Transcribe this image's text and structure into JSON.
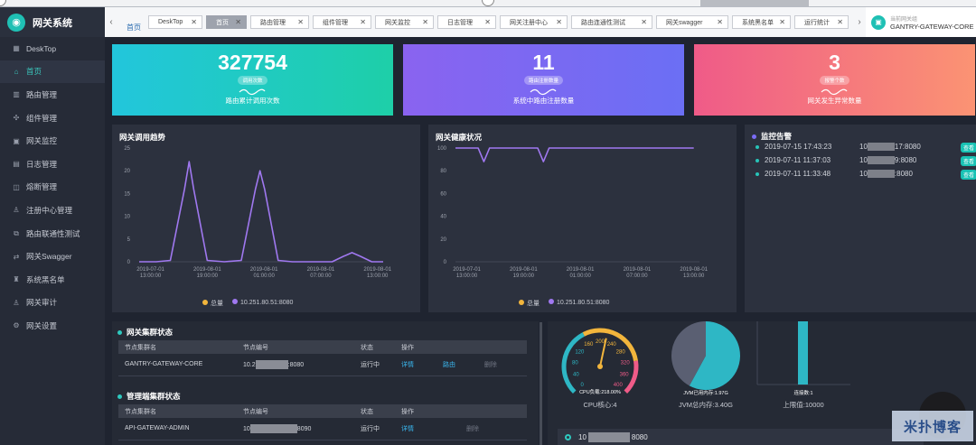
{
  "app": {
    "title": "网关系统"
  },
  "tabs": {
    "breadcrumb": "首页",
    "items": [
      {
        "label": "DeskTop",
        "active": false
      },
      {
        "label": "首页",
        "active": true
      },
      {
        "label": "路由管理",
        "active": false
      },
      {
        "label": "组件管理",
        "active": false
      },
      {
        "label": "网关监控",
        "active": false
      },
      {
        "label": "日志管理",
        "active": false
      },
      {
        "label": "网关注册中心",
        "active": false
      },
      {
        "label": "路由连通性测试",
        "active": false
      },
      {
        "label": "网关swagger",
        "active": false
      },
      {
        "label": "系统黑名单",
        "active": false
      },
      {
        "label": "运行统计",
        "active": false
      }
    ],
    "current_gateway_label": "当前网关组",
    "current_gateway": "GANTRY-GATEWAY-CORE"
  },
  "sidebar": {
    "items": [
      {
        "label": "DeskTop",
        "icon": "grid-icon",
        "glyph": "▦"
      },
      {
        "label": "首页",
        "icon": "home-icon",
        "glyph": "⌂",
        "active": true
      },
      {
        "label": "路由管理",
        "icon": "chart-icon",
        "glyph": "▥"
      },
      {
        "label": "组件管理",
        "icon": "puzzle-icon",
        "glyph": "✣"
      },
      {
        "label": "网关监控",
        "icon": "monitor-icon",
        "glyph": "▣"
      },
      {
        "label": "日志管理",
        "icon": "log-icon",
        "glyph": "▤"
      },
      {
        "label": "熔断管理",
        "icon": "breaker-icon",
        "glyph": "◫"
      },
      {
        "label": "注册中心管理",
        "icon": "registry-icon",
        "glyph": "♙"
      },
      {
        "label": "路由联通性测试",
        "icon": "route-test-icon",
        "glyph": "⧉"
      },
      {
        "label": "网关Swagger",
        "icon": "swagger-icon",
        "glyph": "⇄"
      },
      {
        "label": "系统黑名单",
        "icon": "blacklist-icon",
        "glyph": "♜"
      },
      {
        "label": "网关审计",
        "icon": "audit-icon",
        "glyph": "♙"
      },
      {
        "label": "网关设置",
        "icon": "settings-icon",
        "glyph": "⚙"
      }
    ]
  },
  "stats": [
    {
      "value": "327754",
      "pill": "调用次数",
      "desc": "路由累计调用次数",
      "color": "#22c6dc"
    },
    {
      "value": "11",
      "pill": "路由注册数量",
      "desc": "系统中路由注册数量",
      "color": "#8a63f0"
    },
    {
      "value": "3",
      "pill": "报警个数",
      "desc": "网关发生异常数量",
      "color": "#ef5b88"
    }
  ],
  "trend": {
    "title": "网关调用趋势",
    "legend": [
      "总量",
      "10.251.80.51:8080"
    ],
    "legend_colors": [
      "#f2b53c",
      "#a078f0"
    ]
  },
  "health": {
    "title": "网关健康状况",
    "legend": [
      "总量",
      "10.251.80.51:8080"
    ],
    "legend_colors": [
      "#f2b53c",
      "#a078f0"
    ]
  },
  "chart_data": [
    {
      "type": "line",
      "title": "网关调用趋势",
      "x": [
        "2019-07-01 13:00:00",
        "2019-08-01 19:00:00",
        "2019-08-01 01:00:00",
        "2019-08-01 07:00:00",
        "2019-08-01 13:00:00"
      ],
      "y_ticks": [
        0,
        5,
        10,
        15,
        20,
        25
      ],
      "ylim": [
        0,
        25
      ],
      "series": [
        {
          "name": "10.251.80.51:8080",
          "color": "#a078f0",
          "points": [
            [
              0,
              0
            ],
            [
              0.3,
              0
            ],
            [
              0.55,
              0.3
            ],
            [
              0.8,
              16
            ],
            [
              0.88,
              22
            ],
            [
              0.96,
              16
            ],
            [
              1.2,
              0.3
            ],
            [
              1.5,
              0
            ],
            [
              1.8,
              0.3
            ],
            [
              2.05,
              16
            ],
            [
              2.13,
              20
            ],
            [
              2.21,
              16
            ],
            [
              2.45,
              0.3
            ],
            [
              2.7,
              0
            ],
            [
              3.4,
              0
            ],
            [
              3.6,
              1.2
            ],
            [
              3.75,
              2
            ],
            [
              3.9,
              1.2
            ],
            [
              4.1,
              0
            ],
            [
              4.3,
              0
            ]
          ]
        }
      ],
      "legend": [
        "总量",
        "10.251.80.51:8080"
      ]
    },
    {
      "type": "line",
      "title": "网关健康状况",
      "x": [
        "2019-07-01 13:00:00",
        "2019-08-01 19:00:00",
        "2019-08-01 01:00:00",
        "2019-08-01 07:00:00",
        "2019-08-01 13:00:00"
      ],
      "y_ticks": [
        0,
        20,
        40,
        60,
        80,
        100
      ],
      "ylim": [
        0,
        100
      ],
      "series": [
        {
          "name": "10.251.80.51:8080",
          "color": "#a078f0",
          "points": [
            [
              0,
              100
            ],
            [
              0.25,
              100
            ],
            [
              0.4,
              100
            ],
            [
              0.5,
              88
            ],
            [
              0.6,
              100
            ],
            [
              0.8,
              100
            ],
            [
              1.3,
              100
            ],
            [
              1.45,
              100
            ],
            [
              1.55,
              88
            ],
            [
              1.65,
              100
            ],
            [
              1.85,
              100
            ],
            [
              3.1,
              100
            ],
            [
              4.2,
              100
            ]
          ]
        }
      ],
      "legend": [
        "总量",
        "10.251.80.51:8080"
      ]
    },
    {
      "type": "gauge",
      "title": "CPU核心:4",
      "label": "CPU负载:218.00%",
      "ticks": [
        0,
        40,
        80,
        120,
        160,
        200,
        240,
        280,
        320,
        360,
        400
      ],
      "range": [
        0,
        400
      ],
      "value": 218
    },
    {
      "type": "pie",
      "title": "JVM总内存:3.40G",
      "label": "JVM已用内存:1.97G",
      "values": [
        1.97,
        1.43
      ],
      "colors": [
        "#2eb7c5",
        "#5a5f72"
      ]
    },
    {
      "type": "bar",
      "title": "上限值:10000",
      "label": "连接数:1",
      "values": [
        1
      ],
      "color": "#2eb7c5"
    }
  ],
  "alerts": {
    "title": "监控告警",
    "view_label": "查看",
    "items": [
      {
        "time": "2019-07-15 17:43:23",
        "ip_prefix": "10",
        "ip_suffix": "17:8080"
      },
      {
        "time": "2019-07-11 11:37:03",
        "ip_prefix": "10",
        "ip_suffix": "9:8080"
      },
      {
        "time": "2019-07-11 11:33:48",
        "ip_prefix": "10",
        "ip_suffix": ":8080"
      }
    ]
  },
  "gateway_cluster": {
    "title": "网关集群状态",
    "headers": [
      "节点集群名",
      "节点编号",
      "状态",
      "操作"
    ],
    "rows": [
      {
        "name": "GANTRY-GATEWAY-CORE",
        "id_prefix": "10.2",
        "id_suffix": ":8080",
        "status": "运行中",
        "detail": "详情",
        "route": "路由",
        "delete": "删除"
      }
    ]
  },
  "admin_cluster": {
    "title": "管理端集群状态",
    "headers": [
      "节点集群名",
      "节点编号",
      "状态",
      "操作"
    ],
    "rows": [
      {
        "name": "API-GATEWAY-ADMIN",
        "id_prefix": "10",
        "id_suffix": "8090",
        "status": "运行中",
        "detail": "详情",
        "delete": "删除"
      }
    ]
  },
  "monitor": {
    "cpu_label": "CPU负载:218.00%",
    "cpu_title": "CPU核心:4",
    "jvm_label": "JVM已用内存:1.97G",
    "jvm_title": "JVM总内存:3.40G",
    "conn_label": "连接数:1",
    "conn_title": "上限值:10000",
    "ip_prefix": "10",
    "ip_suffix": "8080"
  },
  "watermark": "米扑博客"
}
